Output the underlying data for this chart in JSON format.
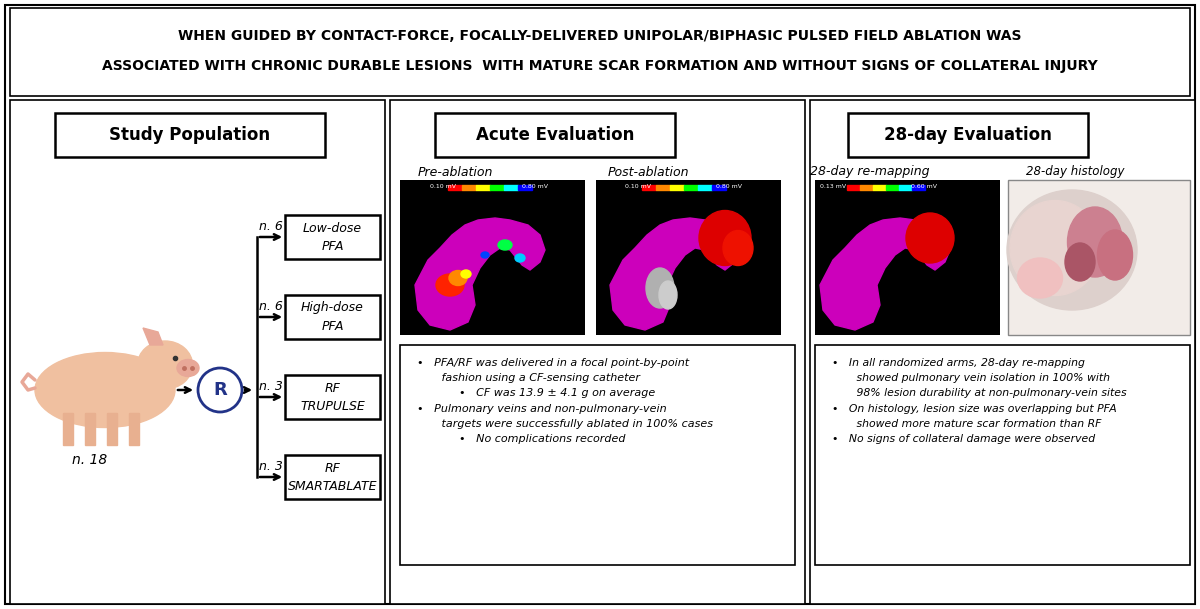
{
  "title_line1": "WHEN GUIDED BY CONTACT-FORCE, FOCALLY-DELIVERED UNIPOLAR/BIPHASIC PULSED FIELD ABLATION WAS",
  "title_line2": "ASSOCIATED WITH CHRONIC DURABLE LESIONS  WITH MATURE SCAR FORMATION AND WITHOUT SIGNS OF COLLATERAL INJURY",
  "panel1_title": "Study Population",
  "panel1_n18": "n. 18",
  "panel1_groups": [
    {
      "label": "Low-dose\nPFA",
      "n": "n. 6"
    },
    {
      "label": "High-dose\nPFA",
      "n": "n. 6"
    },
    {
      "label": "RF\nTRUPULSE",
      "n": "n. 3"
    },
    {
      "label": "RF\nSMARTABLATE",
      "n": "n. 3"
    }
  ],
  "panel2_title": "Acute Evaluation",
  "panel2_sub1": "Pre-ablation",
  "panel2_sub2": "Post-ablation",
  "panel2_bullets": "  •   PFA/RF was delivered in a focal point-by-point\n         fashion using a CF-sensing catheter\n              •   CF was 13.9 ± 4.1 g on average\n  •   Pulmonary veins and non-pulmonary-vein\n         targets were successfully ablated in 100% cases\n              •   No complications recorded",
  "panel3_title": "28-day Evaluation",
  "panel3_sub1": "28-day re-mapping",
  "panel3_sub2": "28-day histology",
  "panel3_bullets": "  •   In all randomized arms, 28-day re-mapping\n         showed pulmonary vein isolation in 100% with\n         98% lesion durability at non-pulmonary-vein sites\n  •   On histology, lesion size was overlapping but PFA\n         showed more mature scar formation than RF\n  •   No signs of collateral damage were observed",
  "bg_color": "#ffffff",
  "border_color": "#000000",
  "text_color": "#000000"
}
